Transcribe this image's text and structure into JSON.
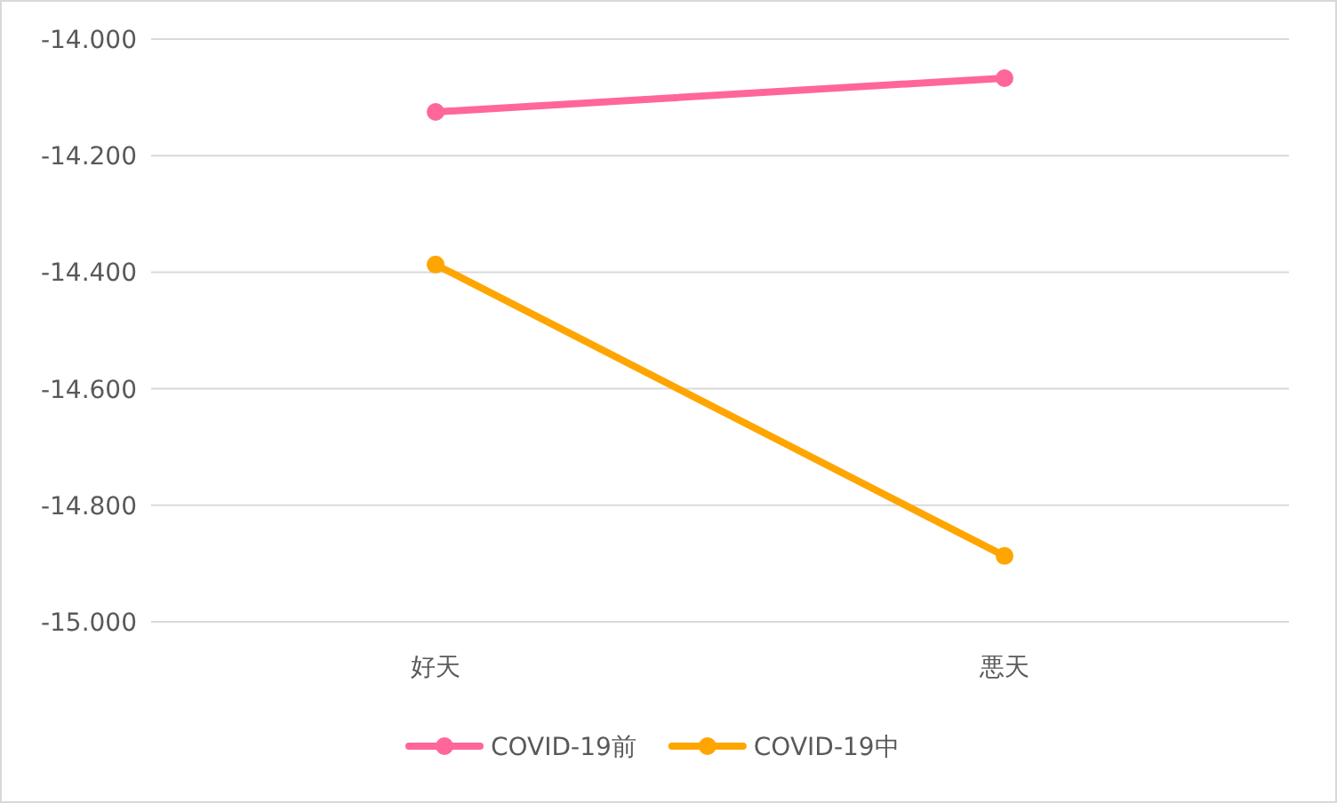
{
  "chart_data": {
    "type": "line",
    "categories": [
      "好天",
      "悪天"
    ],
    "series": [
      {
        "name": "COVID-19前",
        "color": "#ff6699",
        "values": [
          -14.125,
          -14.067
        ]
      },
      {
        "name": "COVID-19中",
        "color": "#ffa500",
        "values": [
          -14.387,
          -14.887
        ]
      }
    ],
    "ylim": [
      -15,
      -14
    ],
    "yticks": [
      {
        "value": -15,
        "label": "-15.000"
      },
      {
        "value": -14.8,
        "label": "-14.800"
      },
      {
        "value": -14.6,
        "label": "-14.600"
      },
      {
        "value": -14.4,
        "label": "-14.400"
      },
      {
        "value": -14.2,
        "label": "-14.200"
      },
      {
        "value": -14,
        "label": "-14.000"
      }
    ],
    "grid": "y",
    "legend": "bottom",
    "marker": "circle",
    "line_style": "solid"
  }
}
